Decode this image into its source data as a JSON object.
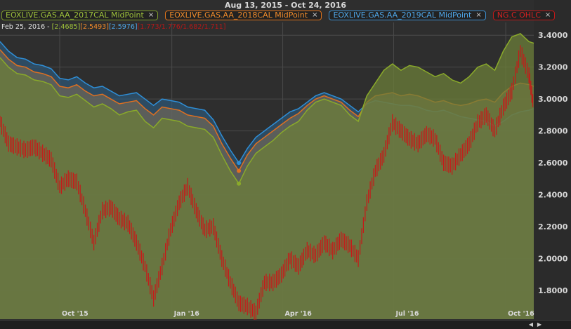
{
  "title": "Aug 13, 2015 - Oct 24, 2016",
  "legend": [
    {
      "label": "EOXLIVE.GAS.AA_2017CAL MidPoint",
      "close": "×",
      "color": "#9ec23a"
    },
    {
      "label": "EOXLIVE.GAS.AA_2018CAL MidPoint",
      "close": "×",
      "color": "#f08a2a"
    },
    {
      "label": "EOXLIVE.GAS.AA_2019CAL MidPoint",
      "close": "×",
      "color": "#4ea7ea"
    },
    {
      "label": "NG.C OHLC",
      "close": "×",
      "color": "#d72020"
    }
  ],
  "readout": {
    "date": "Feb 25, 2016 -",
    "v17": "[2.4685]",
    "v18": "[2.5493]",
    "v19": "[2.5976]",
    "ohlc": "[1.773/1.776/1.682/1.711]"
  },
  "scroll": {
    "left": "◀",
    "right": "▶"
  },
  "chart_data": {
    "type": "line",
    "title": "Aug 13, 2015 - Oct 24, 2016",
    "xlabel": "",
    "ylabel": "",
    "ylim": [
      1.62,
      3.48
    ],
    "y_ticks": [
      "3.4000",
      "3.2000",
      "3.0000",
      "2.8000",
      "2.6000",
      "2.4000",
      "2.2000",
      "2.0000",
      "1.8000"
    ],
    "y_tick_values": [
      3.4,
      3.2,
      3.0,
      2.8,
      2.6,
      2.4,
      2.2,
      2.0,
      1.8
    ],
    "x_ticks": [
      "Oct '15",
      "Jan '16",
      "Apr '16",
      "Jul '16",
      "Oct '16"
    ],
    "x_tick_dates": [
      "2015-10-01",
      "2016-01-01",
      "2016-04-01",
      "2016-07-01",
      "2016-10-01"
    ],
    "x_range": [
      "2015-08-13",
      "2016-10-24"
    ],
    "grid": true,
    "legend_position": "top-left",
    "series": [
      {
        "name": "EOXLIVE.GAS.AA_2017CAL MidPoint",
        "color": "#8aaa2a",
        "points": [
          [
            "2015-08-13",
            3.26
          ],
          [
            "2015-08-20",
            3.2
          ],
          [
            "2015-08-27",
            3.16
          ],
          [
            "2015-09-03",
            3.15
          ],
          [
            "2015-09-10",
            3.12
          ],
          [
            "2015-09-17",
            3.11
          ],
          [
            "2015-09-24",
            3.09
          ],
          [
            "2015-10-01",
            3.02
          ],
          [
            "2015-10-08",
            3.01
          ],
          [
            "2015-10-15",
            3.03
          ],
          [
            "2015-10-22",
            2.99
          ],
          [
            "2015-10-29",
            2.95
          ],
          [
            "2015-11-05",
            2.97
          ],
          [
            "2015-11-12",
            2.94
          ],
          [
            "2015-11-19",
            2.9
          ],
          [
            "2015-11-26",
            2.92
          ],
          [
            "2015-12-03",
            2.93
          ],
          [
            "2015-12-10",
            2.86
          ],
          [
            "2015-12-17",
            2.82
          ],
          [
            "2015-12-24",
            2.88
          ],
          [
            "2015-12-31",
            2.87
          ],
          [
            "2016-01-07",
            2.86
          ],
          [
            "2016-01-14",
            2.83
          ],
          [
            "2016-01-21",
            2.82
          ],
          [
            "2016-01-28",
            2.81
          ],
          [
            "2016-02-04",
            2.76
          ],
          [
            "2016-02-11",
            2.65
          ],
          [
            "2016-02-18",
            2.55
          ],
          [
            "2016-02-25",
            2.47
          ],
          [
            "2016-03-03",
            2.58
          ],
          [
            "2016-03-10",
            2.66
          ],
          [
            "2016-03-17",
            2.7
          ],
          [
            "2016-03-24",
            2.74
          ],
          [
            "2016-03-31",
            2.79
          ],
          [
            "2016-04-07",
            2.83
          ],
          [
            "2016-04-14",
            2.86
          ],
          [
            "2016-04-21",
            2.93
          ],
          [
            "2016-04-28",
            2.98
          ],
          [
            "2016-05-05",
            3.0
          ],
          [
            "2016-05-12",
            2.98
          ],
          [
            "2016-05-19",
            2.96
          ],
          [
            "2016-05-26",
            2.9
          ],
          [
            "2016-06-02",
            2.86
          ],
          [
            "2016-06-09",
            3.02
          ],
          [
            "2016-06-16",
            3.1
          ],
          [
            "2016-06-23",
            3.18
          ],
          [
            "2016-06-30",
            3.22
          ],
          [
            "2016-07-07",
            3.18
          ],
          [
            "2016-07-14",
            3.21
          ],
          [
            "2016-07-21",
            3.2
          ],
          [
            "2016-07-28",
            3.17
          ],
          [
            "2016-08-04",
            3.14
          ],
          [
            "2016-08-11",
            3.16
          ],
          [
            "2016-08-18",
            3.12
          ],
          [
            "2016-08-25",
            3.1
          ],
          [
            "2016-09-01",
            3.14
          ],
          [
            "2016-09-08",
            3.2
          ],
          [
            "2016-09-15",
            3.22
          ],
          [
            "2016-09-22",
            3.18
          ],
          [
            "2016-09-29",
            3.3
          ],
          [
            "2016-10-06",
            3.39
          ],
          [
            "2016-10-13",
            3.41
          ],
          [
            "2016-10-20",
            3.36
          ],
          [
            "2016-10-24",
            3.35
          ]
        ]
      },
      {
        "name": "EOXLIVE.GAS.AA_2018CAL MidPoint",
        "color": "#e07020",
        "points": [
          [
            "2015-08-13",
            3.31
          ],
          [
            "2015-08-20",
            3.25
          ],
          [
            "2015-08-27",
            3.21
          ],
          [
            "2015-09-03",
            3.2
          ],
          [
            "2015-09-10",
            3.17
          ],
          [
            "2015-09-17",
            3.16
          ],
          [
            "2015-09-24",
            3.14
          ],
          [
            "2015-10-01",
            3.08
          ],
          [
            "2015-10-08",
            3.07
          ],
          [
            "2015-10-15",
            3.09
          ],
          [
            "2015-10-22",
            3.05
          ],
          [
            "2015-10-29",
            3.02
          ],
          [
            "2015-11-05",
            3.03
          ],
          [
            "2015-11-12",
            3.0
          ],
          [
            "2015-11-19",
            2.97
          ],
          [
            "2015-11-26",
            2.98
          ],
          [
            "2015-12-03",
            2.99
          ],
          [
            "2015-12-10",
            2.94
          ],
          [
            "2015-12-17",
            2.9
          ],
          [
            "2015-12-24",
            2.95
          ],
          [
            "2015-12-31",
            2.94
          ],
          [
            "2016-01-07",
            2.93
          ],
          [
            "2016-01-14",
            2.9
          ],
          [
            "2016-01-21",
            2.89
          ],
          [
            "2016-01-28",
            2.88
          ],
          [
            "2016-02-04",
            2.83
          ],
          [
            "2016-02-11",
            2.72
          ],
          [
            "2016-02-18",
            2.63
          ],
          [
            "2016-02-25",
            2.55
          ],
          [
            "2016-03-03",
            2.65
          ],
          [
            "2016-03-10",
            2.72
          ],
          [
            "2016-03-17",
            2.76
          ],
          [
            "2016-03-24",
            2.8
          ],
          [
            "2016-03-31",
            2.84
          ],
          [
            "2016-04-07",
            2.88
          ],
          [
            "2016-04-14",
            2.91
          ],
          [
            "2016-04-21",
            2.96
          ],
          [
            "2016-04-28",
            3.0
          ],
          [
            "2016-05-05",
            3.02
          ],
          [
            "2016-05-12",
            3.0
          ],
          [
            "2016-05-19",
            2.98
          ],
          [
            "2016-05-26",
            2.93
          ],
          [
            "2016-06-02",
            2.89
          ],
          [
            "2016-06-09",
            2.98
          ],
          [
            "2016-06-16",
            3.02
          ],
          [
            "2016-06-23",
            3.03
          ],
          [
            "2016-06-30",
            3.04
          ],
          [
            "2016-07-07",
            3.02
          ],
          [
            "2016-07-14",
            3.03
          ],
          [
            "2016-07-21",
            3.02
          ],
          [
            "2016-07-28",
            3.0
          ],
          [
            "2016-08-04",
            2.98
          ],
          [
            "2016-08-11",
            2.99
          ],
          [
            "2016-08-18",
            2.97
          ],
          [
            "2016-08-25",
            2.96
          ],
          [
            "2016-09-01",
            2.97
          ],
          [
            "2016-09-08",
            2.99
          ],
          [
            "2016-09-15",
            3.0
          ],
          [
            "2016-09-22",
            2.98
          ],
          [
            "2016-09-29",
            3.04
          ],
          [
            "2016-10-06",
            3.08
          ],
          [
            "2016-10-13",
            3.1
          ],
          [
            "2016-10-20",
            3.09
          ],
          [
            "2016-10-24",
            3.08
          ]
        ]
      },
      {
        "name": "EOXLIVE.GAS.AA_2019CAL MidPoint",
        "color": "#2e8fd8",
        "points": [
          [
            "2015-08-13",
            3.36
          ],
          [
            "2015-08-20",
            3.3
          ],
          [
            "2015-08-27",
            3.26
          ],
          [
            "2015-09-03",
            3.25
          ],
          [
            "2015-09-10",
            3.22
          ],
          [
            "2015-09-17",
            3.21
          ],
          [
            "2015-09-24",
            3.19
          ],
          [
            "2015-10-01",
            3.13
          ],
          [
            "2015-10-08",
            3.12
          ],
          [
            "2015-10-15",
            3.14
          ],
          [
            "2015-10-22",
            3.1
          ],
          [
            "2015-10-29",
            3.07
          ],
          [
            "2015-11-05",
            3.08
          ],
          [
            "2015-11-12",
            3.05
          ],
          [
            "2015-11-19",
            3.02
          ],
          [
            "2015-11-26",
            3.03
          ],
          [
            "2015-12-03",
            3.04
          ],
          [
            "2015-12-10",
            3.0
          ],
          [
            "2015-12-17",
            2.96
          ],
          [
            "2015-12-24",
            3.0
          ],
          [
            "2015-12-31",
            2.99
          ],
          [
            "2016-01-07",
            2.98
          ],
          [
            "2016-01-14",
            2.95
          ],
          [
            "2016-01-21",
            2.94
          ],
          [
            "2016-01-28",
            2.93
          ],
          [
            "2016-02-04",
            2.87
          ],
          [
            "2016-02-11",
            2.77
          ],
          [
            "2016-02-18",
            2.68
          ],
          [
            "2016-02-25",
            2.6
          ],
          [
            "2016-03-03",
            2.69
          ],
          [
            "2016-03-10",
            2.76
          ],
          [
            "2016-03-17",
            2.8
          ],
          [
            "2016-03-24",
            2.84
          ],
          [
            "2016-03-31",
            2.88
          ],
          [
            "2016-04-07",
            2.92
          ],
          [
            "2016-04-14",
            2.94
          ],
          [
            "2016-04-21",
            2.98
          ],
          [
            "2016-04-28",
            3.02
          ],
          [
            "2016-05-05",
            3.04
          ],
          [
            "2016-05-12",
            3.02
          ],
          [
            "2016-05-19",
            3.0
          ],
          [
            "2016-05-26",
            2.96
          ],
          [
            "2016-06-02",
            2.92
          ],
          [
            "2016-06-09",
            2.97
          ],
          [
            "2016-06-16",
            2.99
          ],
          [
            "2016-06-23",
            2.98
          ],
          [
            "2016-06-30",
            2.97
          ],
          [
            "2016-07-07",
            2.96
          ],
          [
            "2016-07-14",
            2.96
          ],
          [
            "2016-07-21",
            2.95
          ],
          [
            "2016-07-28",
            2.93
          ],
          [
            "2016-08-04",
            2.92
          ],
          [
            "2016-08-11",
            2.93
          ],
          [
            "2016-08-18",
            2.91
          ],
          [
            "2016-08-25",
            2.89
          ],
          [
            "2016-09-01",
            2.88
          ],
          [
            "2016-09-08",
            2.87
          ],
          [
            "2016-09-15",
            2.86
          ],
          [
            "2016-09-22",
            2.83
          ],
          [
            "2016-09-29",
            2.86
          ],
          [
            "2016-10-06",
            2.9
          ],
          [
            "2016-10-13",
            2.92
          ],
          [
            "2016-10-20",
            2.93
          ],
          [
            "2016-10-24",
            2.94
          ]
        ]
      },
      {
        "name": "NG.C OHLC",
        "color": "#c81818",
        "points": [
          [
            "2015-08-13",
            2.86
          ],
          [
            "2015-08-20",
            2.72
          ],
          [
            "2015-08-27",
            2.7
          ],
          [
            "2015-09-03",
            2.68
          ],
          [
            "2015-09-10",
            2.7
          ],
          [
            "2015-09-17",
            2.66
          ],
          [
            "2015-09-24",
            2.62
          ],
          [
            "2015-10-01",
            2.45
          ],
          [
            "2015-10-08",
            2.5
          ],
          [
            "2015-10-15",
            2.48
          ],
          [
            "2015-10-22",
            2.3
          ],
          [
            "2015-10-29",
            2.1
          ],
          [
            "2015-11-05",
            2.3
          ],
          [
            "2015-11-12",
            2.32
          ],
          [
            "2015-11-19",
            2.25
          ],
          [
            "2015-11-26",
            2.22
          ],
          [
            "2015-12-03",
            2.1
          ],
          [
            "2015-12-10",
            1.95
          ],
          [
            "2015-12-17",
            1.75
          ],
          [
            "2015-12-24",
            1.95
          ],
          [
            "2015-12-31",
            2.18
          ],
          [
            "2016-01-07",
            2.35
          ],
          [
            "2016-01-14",
            2.45
          ],
          [
            "2016-01-21",
            2.3
          ],
          [
            "2016-01-28",
            2.18
          ],
          [
            "2016-02-04",
            2.2
          ],
          [
            "2016-02-11",
            2.0
          ],
          [
            "2016-02-18",
            1.85
          ],
          [
            "2016-02-25",
            1.72
          ],
          [
            "2016-03-03",
            1.7
          ],
          [
            "2016-03-10",
            1.66
          ],
          [
            "2016-03-17",
            1.85
          ],
          [
            "2016-03-24",
            1.85
          ],
          [
            "2016-03-31",
            1.9
          ],
          [
            "2016-04-07",
            2.0
          ],
          [
            "2016-04-14",
            1.95
          ],
          [
            "2016-04-21",
            2.05
          ],
          [
            "2016-04-28",
            2.02
          ],
          [
            "2016-05-05",
            2.1
          ],
          [
            "2016-05-12",
            2.05
          ],
          [
            "2016-05-19",
            2.12
          ],
          [
            "2016-05-26",
            2.08
          ],
          [
            "2016-06-02",
            2.0
          ],
          [
            "2016-06-09",
            2.35
          ],
          [
            "2016-06-16",
            2.55
          ],
          [
            "2016-06-23",
            2.65
          ],
          [
            "2016-06-30",
            2.85
          ],
          [
            "2016-07-07",
            2.8
          ],
          [
            "2016-07-14",
            2.75
          ],
          [
            "2016-07-21",
            2.72
          ],
          [
            "2016-07-28",
            2.78
          ],
          [
            "2016-08-04",
            2.75
          ],
          [
            "2016-08-11",
            2.6
          ],
          [
            "2016-08-18",
            2.58
          ],
          [
            "2016-08-25",
            2.65
          ],
          [
            "2016-09-01",
            2.72
          ],
          [
            "2016-09-08",
            2.85
          ],
          [
            "2016-09-15",
            2.9
          ],
          [
            "2016-09-22",
            2.8
          ],
          [
            "2016-09-29",
            2.95
          ],
          [
            "2016-10-06",
            3.05
          ],
          [
            "2016-10-13",
            3.3
          ],
          [
            "2016-10-20",
            3.15
          ],
          [
            "2016-10-24",
            2.95
          ]
        ]
      }
    ]
  }
}
